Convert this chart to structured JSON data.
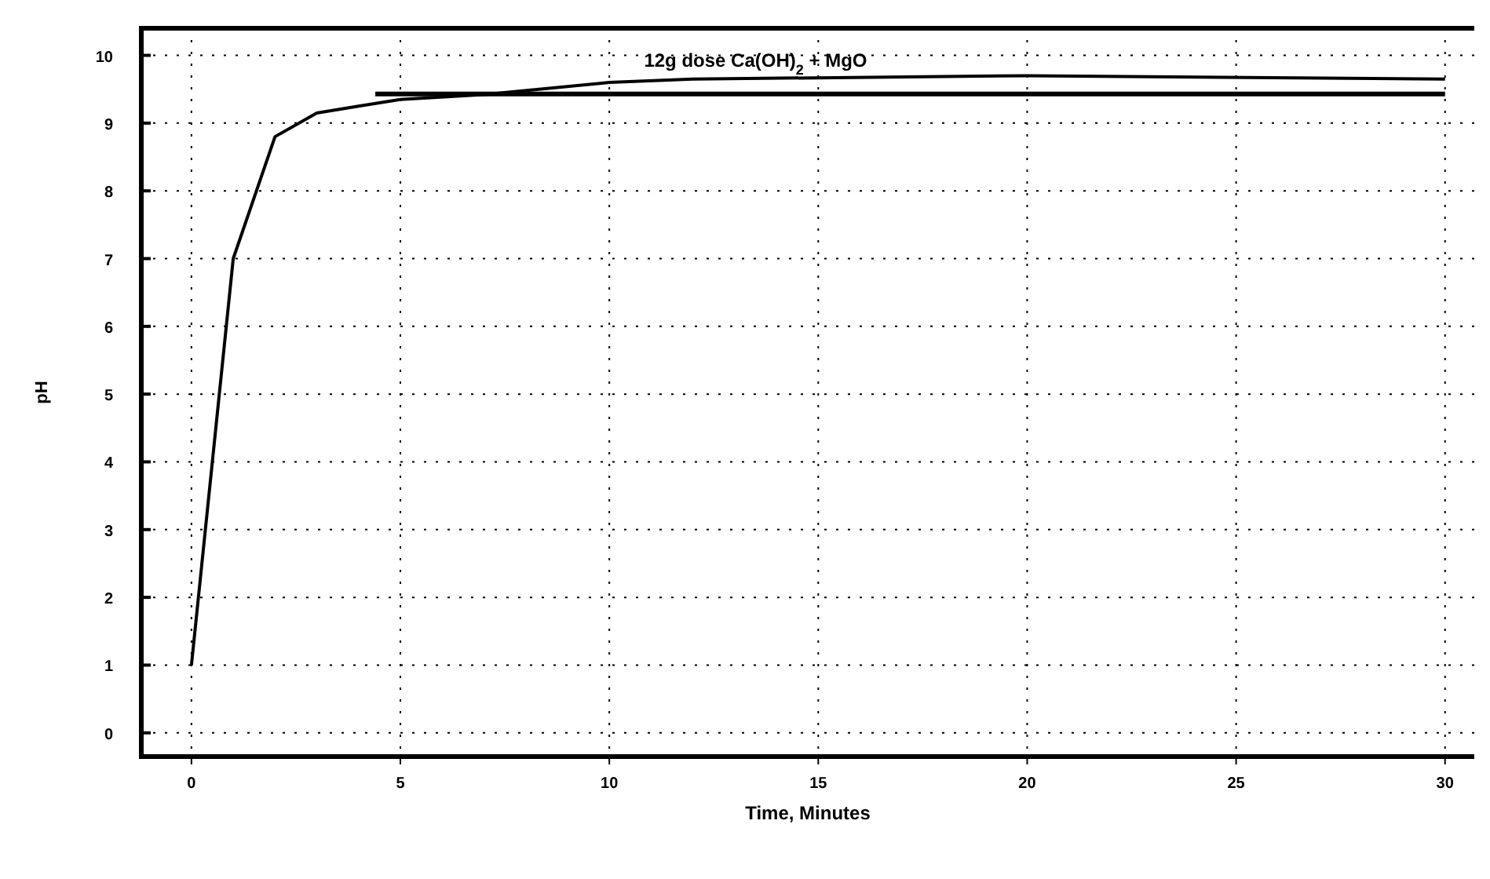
{
  "chart_data": {
    "type": "line",
    "xlabel": "Time,  Minutes",
    "ylabel": "pH",
    "series": [
      {
        "color": "#000000",
        "x": [
          0,
          1,
          2,
          3,
          4,
          5,
          7,
          10,
          12,
          20,
          30
        ],
        "values": [
          1,
          7,
          8.8,
          9.15,
          9.25,
          9.35,
          9.42,
          9.6,
          9.65,
          9.7,
          9.65
        ]
      },
      {
        "color": "#000000",
        "x": [
          4.4,
          30
        ],
        "values": [
          9.43,
          9.43
        ]
      }
    ],
    "annotations": [
      {
        "text": "12g  dose  Ca(OH)$_{2}$ + MgO",
        "x": 13.5,
        "y": 9.65
      }
    ],
    "xlim": [
      -1.2,
      30.7
    ],
    "xticks": [
      0,
      5,
      10,
      15,
      20,
      25,
      30
    ],
    "ylim": [
      -0.35,
      10.4
    ],
    "yticks": [
      0,
      1,
      2,
      3,
      4,
      5,
      6,
      7,
      8,
      9,
      10
    ],
    "grid": true,
    "line_style": "solid",
    "marker": "none"
  }
}
